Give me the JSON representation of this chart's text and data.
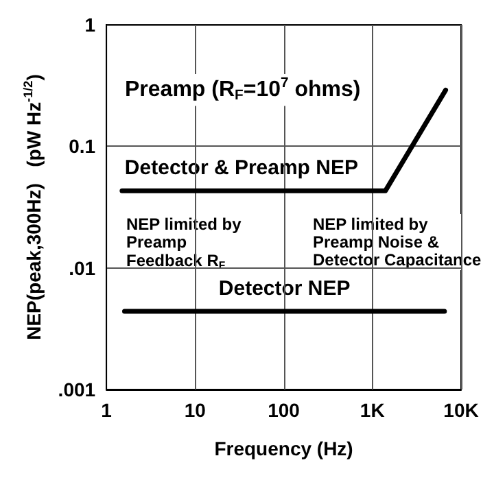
{
  "chart_data": {
    "type": "line",
    "title": "Preamp (R$_{F}$=10$^{7}$ ohms)",
    "xlabel": "Frequency (Hz)",
    "ylabel": "NEP(peak,300Hz)   (pW Hz$^{-1/2}$)",
    "log": "xy",
    "grid": true,
    "legend": false,
    "marker": "none",
    "line_style": "solid",
    "xlim": [
      1,
      10000
    ],
    "xticks": [
      1,
      10,
      100,
      {
        "value": 1000,
        "label": "1K"
      },
      {
        "value": 10000,
        "label": "10K"
      }
    ],
    "ylim": [
      0.001,
      1
    ],
    "yticks": [
      {
        "value": 0.001,
        "label": ".001"
      },
      {
        "value": 0.01,
        "label": ".01"
      },
      {
        "value": 0.1,
        "label": "0.1"
      },
      1
    ],
    "series": [
      {
        "name": "Detector & Preamp NEP",
        "color": "#000000",
        "x": [
          1.5,
          1400,
          6700
        ],
        "values": [
          0.043,
          0.043,
          0.29
        ]
      },
      {
        "name": "Detector NEP",
        "color": "#000000",
        "x": [
          1.6,
          6500
        ],
        "values": [
          0.0044,
          0.0044
        ]
      }
    ],
    "annotations": [
      "NEP limited by\nPreamp\nFeedback R$_{F}$",
      "NEP limited by\nPreamp Noise &\nDetector Capacitance"
    ]
  }
}
